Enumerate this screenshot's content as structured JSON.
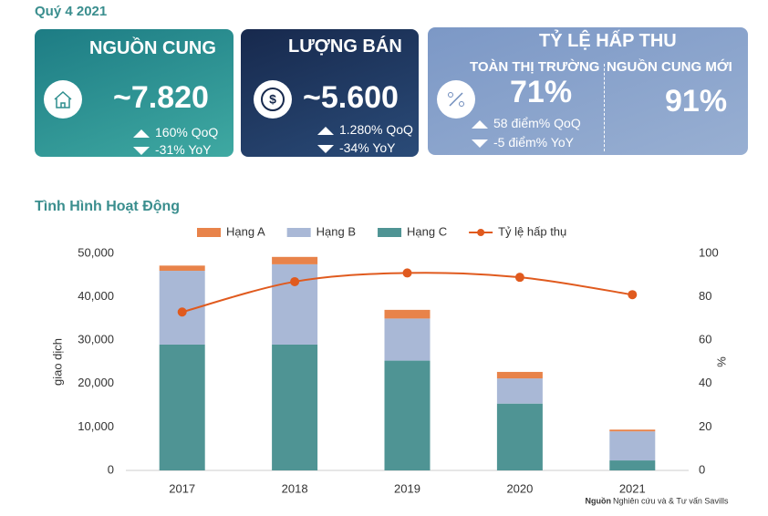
{
  "header": {
    "period": "Quý 4 2021"
  },
  "cards": [
    {
      "title": "NGUỒN CUNG",
      "value": "~7.820",
      "changes": [
        {
          "text": "160% QoQ",
          "direction": "up"
        },
        {
          "text": "-31% YoY",
          "direction": "down"
        }
      ]
    },
    {
      "title": "LƯỢNG BÁN",
      "value": "~5.600",
      "changes": [
        {
          "text": "1.280% QoQ",
          "direction": "up"
        },
        {
          "text": "-34% YoY",
          "direction": "down"
        }
      ]
    },
    {
      "title": "TỶ LỆ HẤP THU",
      "parts": [
        {
          "title": "TOÀN THỊ TRƯỜNG",
          "value": "71%",
          "changes": [
            {
              "text": "58 điểm% QoQ",
              "direction": "up"
            },
            {
              "text": "-5 điểm% YoY",
              "direction": "down"
            }
          ]
        },
        {
          "title": "NGUỒN CUNG MỚI",
          "value": "91%"
        }
      ]
    }
  ],
  "section_title": "Tình Hình Hoạt Động",
  "chart_data": {
    "type": "bar",
    "stacked": true,
    "categories": [
      "2017",
      "2018",
      "2019",
      "2020",
      "2021"
    ],
    "series": [
      {
        "name": "Hạng A",
        "color": "#e8834a",
        "values": [
          1200,
          1700,
          2000,
          1500,
          400
        ]
      },
      {
        "name": "Hạng B",
        "color": "#a9b8d6",
        "values": [
          17000,
          18500,
          9700,
          5800,
          6700
        ]
      },
      {
        "name": "Hạng C",
        "color": "#4f9494",
        "values": [
          29000,
          29000,
          25300,
          15400,
          2300
        ]
      },
      {
        "name": "Tỷ lệ hấp thụ",
        "type": "line",
        "axis": "y2",
        "color": "#e05a1e",
        "values": [
          73,
          87,
          91,
          89,
          81
        ]
      }
    ],
    "ylabel": "giao dịch",
    "y2label": "%",
    "ylim": [
      0,
      50000
    ],
    "yticks": [
      0,
      {
        "value": 10000,
        "label": "10,000"
      },
      {
        "value": 20000,
        "label": "20,000"
      },
      {
        "value": 30000,
        "label": "30,000"
      },
      {
        "value": 40000,
        "label": "40,000"
      },
      {
        "value": 50000,
        "label": "50,000"
      }
    ],
    "y2lim": [
      0,
      100
    ],
    "y2ticks": [
      0,
      20,
      40,
      60,
      80,
      100
    ],
    "legend": "top"
  },
  "source": {
    "label": "Nguồn",
    "text": "Nghiên cứu và & Tư vấn Savills"
  }
}
